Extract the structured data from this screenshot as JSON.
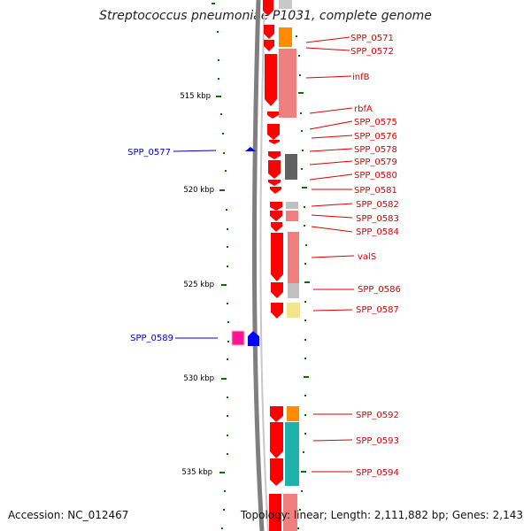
{
  "title": "Streptococcus pneumoniae P1031, complete genome",
  "footer": {
    "accession": "Accession: NC_012467",
    "topology": "Topology: linear; Length: 2,111,882 bp; Genes: 2,143"
  },
  "colors": {
    "forward_gene": "#ff0000",
    "reverse_gene_blue": "#0000ff",
    "reverse_gene_magenta": "#ff1493",
    "label_forward": "#dd0000",
    "label_reverse": "#0000cc",
    "tick": "#007700",
    "backbone": "#808080"
  },
  "scale_labels": [
    "515 kbp",
    "520 kbp",
    "525 kbp",
    "530 kbp",
    "535 kbp"
  ],
  "forward_labels": [
    "SPP_0571",
    "SPP_0572",
    "infB",
    "rbfA",
    "SPP_0575",
    "SPP_0576",
    "SPP_0578",
    "SPP_0579",
    "SPP_0580",
    "SPP_0581",
    "SPP_0582",
    "SPP_0583",
    "SPP_0584",
    "valS",
    "SPP_0586",
    "SPP_0587",
    "SPP_0592",
    "SPP_0593",
    "SPP_0594"
  ],
  "reverse_labels": [
    "SPP_0577",
    "SPP_0589"
  ]
}
